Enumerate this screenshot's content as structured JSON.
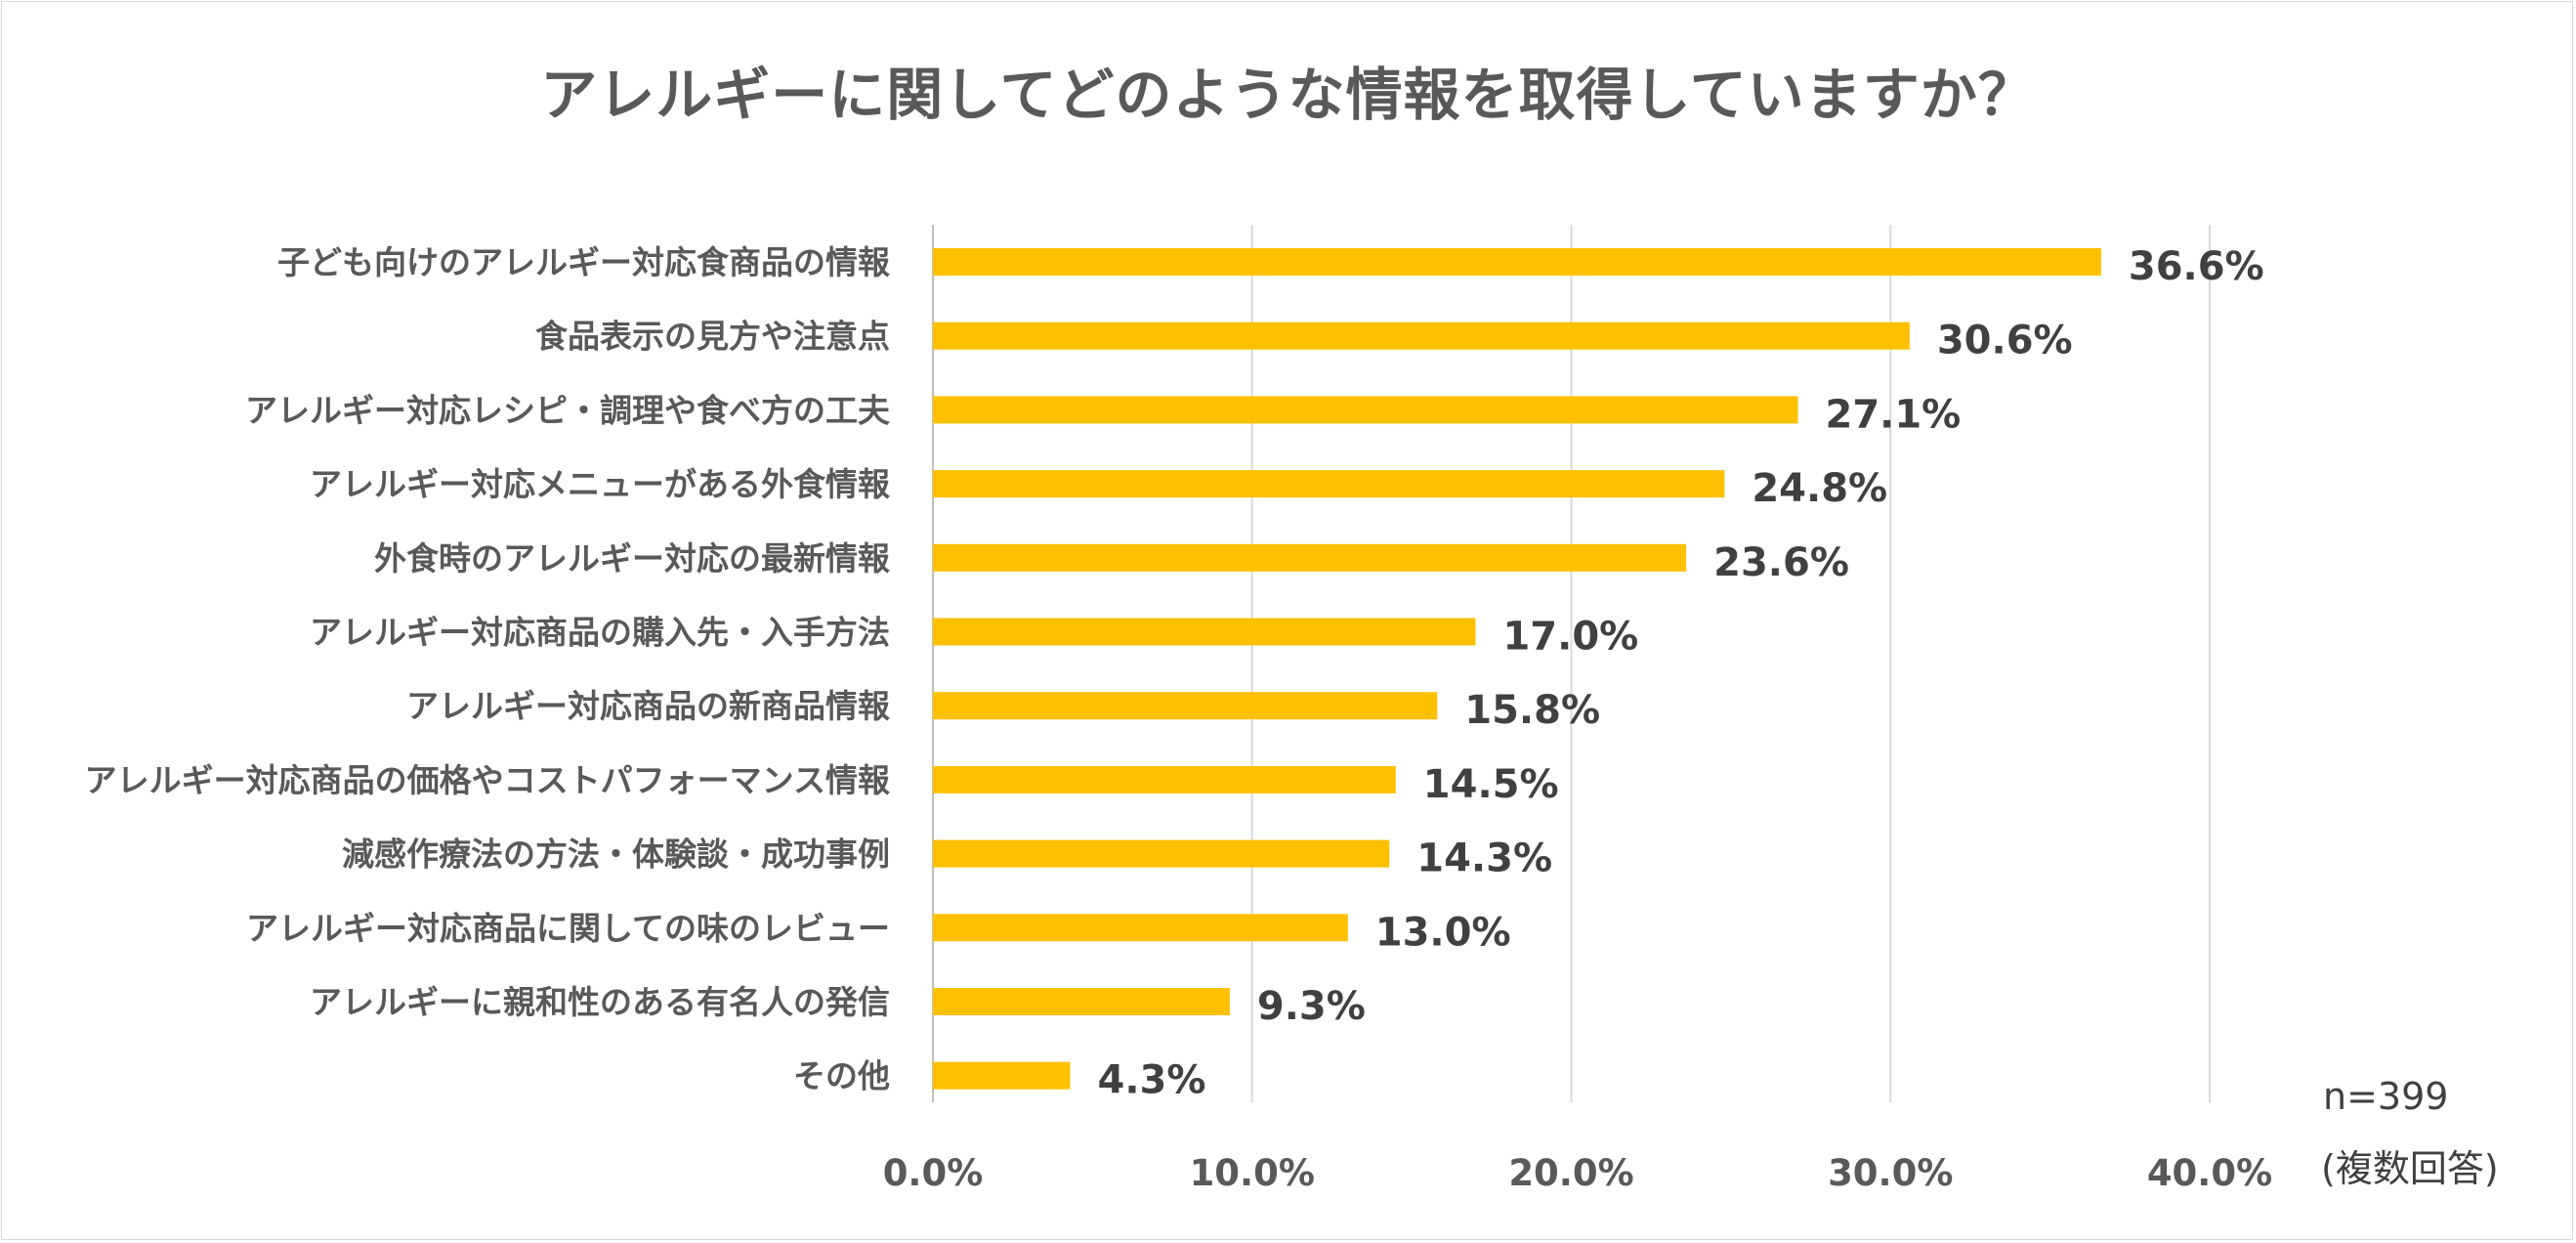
{
  "title": "アレルギーに関してどのような情報を取得していますか？",
  "note": {
    "n": "n=399",
    "type": "(複数回答)"
  },
  "colors": {
    "bar": "#FFC000",
    "grid": "#d9d9d9"
  },
  "chart_data": {
    "type": "bar",
    "orientation": "horizontal",
    "title": "アレルギーに関してどのような情報を取得していますか？",
    "categories": [
      "子ども向けのアレルギー対応食商品の情報",
      "食品表示の見方や注意点",
      "アレルギー対応レシピ・調理や食べ方の工夫",
      "アレルギー対応メニューがある外食情報",
      "外食時のアレルギー対応の最新情報",
      "アレルギー対応商品の購入先・入手方法",
      "アレルギー対応商品の新商品情報",
      "アレルギー対応商品の価格やコストパフォーマンス情報",
      "減感作療法の方法・体験談・成功事例",
      "アレルギー対応商品に関しての味のレビュー",
      "アレルギーに親和性のある有名人の発信",
      "その他"
    ],
    "values": [
      36.6,
      30.6,
      27.1,
      24.8,
      23.6,
      17.0,
      15.8,
      14.5,
      14.3,
      13.0,
      9.3,
      4.3
    ],
    "value_labels": [
      "36.6%",
      "30.6%",
      "27.1%",
      "24.8%",
      "23.6%",
      "17.0%",
      "15.8%",
      "14.5%",
      "14.3%",
      "13.0%",
      "9.3%",
      "4.3%"
    ],
    "xlim": [
      0,
      40
    ],
    "xticks": [
      0,
      10,
      20,
      30,
      40
    ],
    "xtick_labels": [
      "0.0%",
      "10.0%",
      "20.0%",
      "30.0%",
      "40.0%"
    ],
    "grid": true,
    "legend": "none"
  }
}
